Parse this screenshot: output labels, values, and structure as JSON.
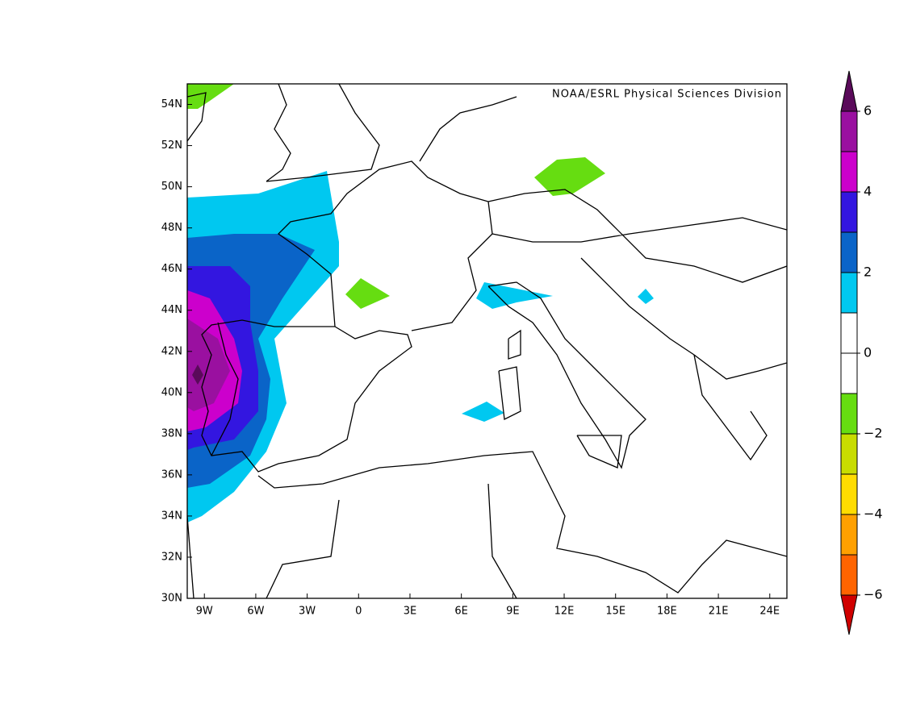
{
  "map": {
    "credit": "NOAA/ESRL Physical Sciences Division",
    "xlim": [
      -10,
      25
    ],
    "ylim": [
      30,
      55
    ],
    "xticks": [
      {
        "value": -9,
        "label": "9W"
      },
      {
        "value": -6,
        "label": "6W"
      },
      {
        "value": -3,
        "label": "3W"
      },
      0,
      {
        "value": 3,
        "label": "3E"
      },
      {
        "value": 6,
        "label": "6E"
      },
      {
        "value": 9,
        "label": "9E"
      },
      {
        "value": 12,
        "label": "12E"
      },
      {
        "value": 15,
        "label": "15E"
      },
      {
        "value": 18,
        "label": "18E"
      },
      {
        "value": 21,
        "label": "21E"
      },
      {
        "value": 24,
        "label": "24E"
      }
    ],
    "yticks": [
      {
        "value": 30,
        "label": "30N"
      },
      {
        "value": 32,
        "label": "32N"
      },
      {
        "value": 34,
        "label": "34N"
      },
      {
        "value": 36,
        "label": "36N"
      },
      {
        "value": 38,
        "label": "38N"
      },
      {
        "value": 40,
        "label": "40N"
      },
      {
        "value": 42,
        "label": "42N"
      },
      {
        "value": 44,
        "label": "44N"
      },
      {
        "value": 46,
        "label": "46N"
      },
      {
        "value": 48,
        "label": "48N"
      },
      {
        "value": 50,
        "label": "50N"
      },
      {
        "value": 52,
        "label": "52N"
      },
      {
        "value": 54,
        "label": "54N"
      }
    ],
    "colorbar": {
      "levels": [
        -6,
        -5,
        -4,
        -3,
        -2,
        -1,
        0,
        1,
        2,
        3,
        4,
        5,
        6
      ],
      "colors": [
        "#d00000",
        "#ff6400",
        "#ffa000",
        "#ffdc00",
        "#c8dc00",
        "#66dd11",
        "#ffffff",
        "#ffffff",
        "#00c8f0",
        "#0a64c8",
        "#3316e0",
        "#cc00cc",
        "#9a10a0",
        "#5a0a5a"
      ],
      "ticks": [
        {
          "value": -6,
          "label": "−6"
        },
        {
          "value": -4,
          "label": "−4"
        },
        {
          "value": -2,
          "label": "−2"
        },
        0,
        2,
        4,
        6
      ]
    }
  }
}
